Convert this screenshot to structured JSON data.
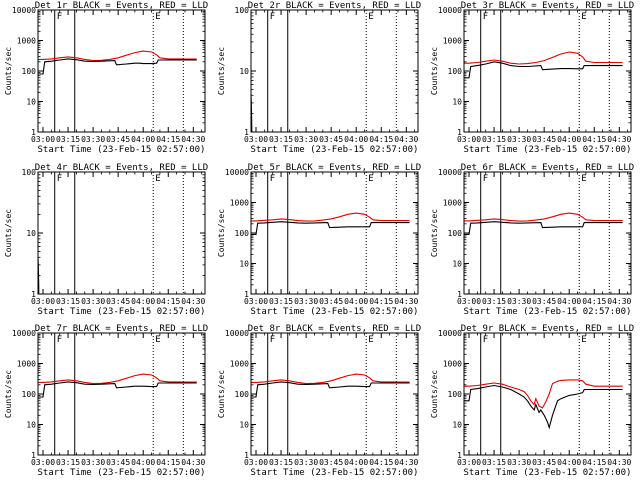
{
  "colors": {
    "events": "#000000",
    "lld": "#e00000",
    "axes": "#000000",
    "background": "#ffffff"
  },
  "x_ticks": [
    "03:00",
    "03:15",
    "03:30",
    "03:45",
    "04:00",
    "04:15",
    "04:30"
  ],
  "xlabel": "Start Time (23-Feb-15 02:57:00)",
  "ylabel": "Counts/sec",
  "chart_data": [
    {
      "type": "line",
      "title": "Det 1r BLACK = Events, RED = LLD",
      "ylim": [
        1,
        10000
      ],
      "yscale": "log",
      "y_ticks": [
        "1",
        "10",
        "100",
        "1000",
        "10000"
      ],
      "markers": {
        "solid_at": [
          "03:07",
          "03:19"
        ],
        "dotted_at": [
          "04:06",
          "04:24"
        ],
        "letters": [
          "F",
          "E"
        ]
      },
      "series": [
        {
          "name": "BLACK",
          "x": [
            "02:57",
            "03:00",
            "03:01",
            "03:05",
            "03:10",
            "03:15",
            "03:20",
            "03:25",
            "03:30",
            "03:35",
            "03:43",
            "03:44",
            "03:50",
            "03:55",
            "03:58",
            "04:00",
            "04:05",
            "04:08",
            "04:09",
            "04:15",
            "04:20",
            "04:25",
            "04:28",
            "04:32"
          ],
          "values": [
            80,
            80,
            200,
            210,
            230,
            250,
            235,
            210,
            205,
            210,
            220,
            160,
            170,
            180,
            180,
            175,
            175,
            180,
            230,
            230,
            230,
            230,
            230,
            230
          ]
        },
        {
          "name": "RED",
          "x": [
            "02:57",
            "03:00",
            "03:05",
            "03:10",
            "03:15",
            "03:20",
            "03:25",
            "03:30",
            "03:35",
            "03:40",
            "03:45",
            "03:50",
            "03:55",
            "04:00",
            "04:05",
            "04:08",
            "04:10",
            "04:15",
            "04:20",
            "04:25",
            "04:28",
            "04:32"
          ],
          "values": [
            240,
            240,
            250,
            270,
            290,
            270,
            240,
            220,
            225,
            240,
            270,
            330,
            400,
            450,
            420,
            340,
            270,
            250,
            250,
            245,
            245,
            245
          ]
        }
      ]
    },
    {
      "type": "line",
      "title": "Det 2r BLACK = Events, RED = LLD",
      "ylim": [
        1,
        100
      ],
      "yscale": "log",
      "y_ticks": [
        "1",
        "10",
        "100"
      ],
      "markers": {
        "solid_at": [
          "03:07",
          "03:19"
        ],
        "dotted_at": [
          "04:06",
          "04:24"
        ],
        "letters": [
          "F",
          "E"
        ]
      },
      "series": [
        {
          "name": "BLACK",
          "x": [
            "02:57",
            "02:57.2",
            "02:57.4",
            "02:57.5"
          ],
          "values": [
            4,
            3,
            1.5,
            1
          ]
        }
      ]
    },
    {
      "type": "line",
      "title": "Det 3r BLACK = Events, RED = LLD",
      "ylim": [
        1,
        10000
      ],
      "yscale": "log",
      "y_ticks": [
        "1",
        "10",
        "100",
        "1000",
        "10000"
      ],
      "markers": {
        "solid_at": [
          "03:07",
          "03:19"
        ],
        "dotted_at": [
          "04:06",
          "04:24"
        ],
        "letters": [
          "F",
          "E"
        ]
      },
      "series": [
        {
          "name": "BLACK",
          "x": [
            "02:57",
            "03:00",
            "03:01",
            "03:05",
            "03:10",
            "03:15",
            "03:20",
            "03:25",
            "03:30",
            "03:35",
            "03:43",
            "03:44",
            "03:50",
            "03:55",
            "04:00",
            "04:05",
            "04:08",
            "04:09",
            "04:15",
            "04:20",
            "04:25",
            "04:32"
          ],
          "values": [
            60,
            60,
            140,
            150,
            170,
            200,
            180,
            150,
            140,
            140,
            150,
            110,
            115,
            120,
            120,
            118,
            118,
            150,
            150,
            150,
            150,
            150
          ]
        },
        {
          "name": "RED",
          "x": [
            "02:57",
            "03:00",
            "03:05",
            "03:10",
            "03:15",
            "03:20",
            "03:25",
            "03:30",
            "03:35",
            "03:40",
            "03:45",
            "03:50",
            "03:55",
            "04:00",
            "04:05",
            "04:08",
            "04:10",
            "04:15",
            "04:20",
            "04:25",
            "04:32"
          ],
          "values": [
            180,
            180,
            190,
            210,
            230,
            210,
            180,
            170,
            175,
            190,
            220,
            280,
            360,
            420,
            380,
            290,
            210,
            190,
            190,
            190,
            190
          ]
        }
      ]
    },
    {
      "type": "line",
      "title": "Det 4r BLACK = Events, RED = LLD",
      "ylim": [
        1,
        100
      ],
      "yscale": "log",
      "y_ticks": [
        "1",
        "10",
        "100"
      ],
      "markers": {
        "solid_at": [
          "03:07",
          "03:19"
        ],
        "dotted_at": [
          "04:06",
          "04:24"
        ],
        "letters": [
          "F",
          "E"
        ]
      },
      "series": [
        {
          "name": "BLACK",
          "x": [
            "02:57",
            "02:57.2",
            "02:57.4",
            "02:57.5"
          ],
          "values": [
            4,
            3,
            1.5,
            1
          ]
        }
      ]
    },
    {
      "type": "line",
      "title": "Det 5r BLACK = Events, RED = LLD",
      "ylim": [
        1,
        10000
      ],
      "yscale": "log",
      "y_ticks": [
        "1",
        "10",
        "100",
        "1000",
        "10000"
      ],
      "markers": {
        "solid_at": [
          "03:07",
          "03:19"
        ],
        "dotted_at": [
          "04:06",
          "04:24"
        ],
        "letters": [
          "F",
          "E"
        ]
      },
      "series": [
        {
          "name": "BLACK",
          "x": [
            "02:57",
            "03:00",
            "03:01",
            "03:05",
            "03:10",
            "03:15",
            "03:20",
            "03:25",
            "03:30",
            "03:35",
            "03:43",
            "03:44",
            "03:50",
            "03:55",
            "04:00",
            "04:05",
            "04:08",
            "04:09",
            "04:15",
            "04:20",
            "04:25",
            "04:32"
          ],
          "values": [
            90,
            90,
            210,
            215,
            225,
            235,
            225,
            215,
            210,
            215,
            220,
            150,
            155,
            160,
            160,
            160,
            160,
            220,
            220,
            220,
            220,
            220
          ]
        },
        {
          "name": "RED",
          "x": [
            "02:57",
            "03:00",
            "03:05",
            "03:10",
            "03:15",
            "03:20",
            "03:25",
            "03:30",
            "03:35",
            "03:40",
            "03:45",
            "03:50",
            "03:55",
            "04:00",
            "04:05",
            "04:08",
            "04:10",
            "04:15",
            "04:20",
            "04:25",
            "04:32"
          ],
          "values": [
            250,
            250,
            260,
            270,
            290,
            275,
            255,
            245,
            250,
            265,
            290,
            340,
            410,
            450,
            410,
            330,
            270,
            255,
            255,
            255,
            255
          ]
        }
      ]
    },
    {
      "type": "line",
      "title": "Det 6r BLACK = Events, RED = LLD",
      "ylim": [
        1,
        10000
      ],
      "yscale": "log",
      "y_ticks": [
        "1",
        "10",
        "100",
        "1000",
        "10000"
      ],
      "markers": {
        "solid_at": [
          "03:07",
          "03:19"
        ],
        "dotted_at": [
          "04:06",
          "04:24"
        ],
        "letters": [
          "F",
          "E"
        ]
      },
      "series": [
        {
          "name": "BLACK",
          "x": [
            "02:57",
            "03:00",
            "03:01",
            "03:05",
            "03:10",
            "03:15",
            "03:20",
            "03:25",
            "03:30",
            "03:35",
            "03:43",
            "03:44",
            "03:50",
            "03:55",
            "04:00",
            "04:05",
            "04:08",
            "04:09",
            "04:15",
            "04:20",
            "04:25",
            "04:32"
          ],
          "values": [
            90,
            90,
            210,
            215,
            225,
            235,
            225,
            215,
            210,
            215,
            220,
            150,
            155,
            160,
            160,
            160,
            160,
            220,
            220,
            220,
            220,
            220
          ]
        },
        {
          "name": "RED",
          "x": [
            "02:57",
            "03:00",
            "03:05",
            "03:10",
            "03:15",
            "03:20",
            "03:25",
            "03:30",
            "03:35",
            "03:40",
            "03:45",
            "03:50",
            "03:55",
            "04:00",
            "04:05",
            "04:08",
            "04:10",
            "04:15",
            "04:20",
            "04:25",
            "04:32"
          ],
          "values": [
            250,
            250,
            260,
            270,
            290,
            275,
            255,
            245,
            250,
            265,
            290,
            340,
            410,
            450,
            410,
            330,
            270,
            255,
            255,
            255,
            255
          ]
        }
      ]
    },
    {
      "type": "line",
      "title": "Det 7r BLACK = Events, RED = LLD",
      "ylim": [
        1,
        10000
      ],
      "yscale": "log",
      "y_ticks": [
        "1",
        "10",
        "100",
        "1000",
        "10000"
      ],
      "markers": {
        "solid_at": [
          "03:07",
          "03:19"
        ],
        "dotted_at": [
          "04:06",
          "04:24"
        ],
        "letters": [
          "F",
          "E"
        ]
      },
      "series": [
        {
          "name": "BLACK",
          "x": [
            "02:57",
            "03:00",
            "03:01",
            "03:05",
            "03:10",
            "03:15",
            "03:20",
            "03:25",
            "03:30",
            "03:35",
            "03:43",
            "03:44",
            "03:50",
            "03:55",
            "04:00",
            "04:05",
            "04:08",
            "04:09",
            "04:15",
            "04:20",
            "04:25",
            "04:32"
          ],
          "values": [
            80,
            80,
            200,
            210,
            230,
            250,
            235,
            210,
            205,
            210,
            220,
            160,
            170,
            180,
            180,
            175,
            175,
            230,
            230,
            230,
            230,
            230
          ]
        },
        {
          "name": "RED",
          "x": [
            "02:57",
            "03:00",
            "03:05",
            "03:10",
            "03:15",
            "03:20",
            "03:25",
            "03:30",
            "03:35",
            "03:40",
            "03:45",
            "03:50",
            "03:55",
            "04:00",
            "04:05",
            "04:08",
            "04:10",
            "04:15",
            "04:20",
            "04:25",
            "04:32"
          ],
          "values": [
            240,
            240,
            250,
            270,
            290,
            270,
            240,
            220,
            225,
            240,
            270,
            330,
            400,
            450,
            420,
            340,
            270,
            250,
            250,
            245,
            245
          ]
        }
      ]
    },
    {
      "type": "line",
      "title": "Det 8r BLACK = Events, RED = LLD",
      "ylim": [
        1,
        10000
      ],
      "yscale": "log",
      "y_ticks": [
        "1",
        "10",
        "100",
        "1000",
        "10000"
      ],
      "markers": {
        "solid_at": [
          "03:07",
          "03:19"
        ],
        "dotted_at": [
          "04:06",
          "04:24"
        ],
        "letters": [
          "F",
          "E"
        ]
      },
      "series": [
        {
          "name": "BLACK",
          "x": [
            "02:57",
            "03:00",
            "03:01",
            "03:05",
            "03:10",
            "03:15",
            "03:20",
            "03:25",
            "03:30",
            "03:35",
            "03:43",
            "03:44",
            "03:50",
            "03:55",
            "04:00",
            "04:05",
            "04:08",
            "04:09",
            "04:15",
            "04:20",
            "04:25",
            "04:32"
          ],
          "values": [
            80,
            80,
            200,
            210,
            230,
            250,
            235,
            210,
            205,
            210,
            220,
            160,
            170,
            180,
            180,
            175,
            175,
            230,
            230,
            230,
            230,
            230
          ]
        },
        {
          "name": "RED",
          "x": [
            "02:57",
            "03:00",
            "03:05",
            "03:10",
            "03:15",
            "03:20",
            "03:25",
            "03:30",
            "03:35",
            "03:40",
            "03:45",
            "03:50",
            "03:55",
            "04:00",
            "04:05",
            "04:08",
            "04:10",
            "04:15",
            "04:20",
            "04:25",
            "04:32"
          ],
          "values": [
            240,
            240,
            250,
            270,
            290,
            270,
            240,
            220,
            225,
            240,
            270,
            330,
            400,
            450,
            420,
            340,
            270,
            250,
            250,
            245,
            245
          ]
        }
      ]
    },
    {
      "type": "line",
      "title": "Det 9r BLACK = Events, RED = LLD",
      "ylim": [
        1,
        10000
      ],
      "yscale": "log",
      "y_ticks": [
        "1",
        "10",
        "100",
        "1000",
        "10000"
      ],
      "markers": {
        "solid_at": [
          "03:07",
          "03:19"
        ],
        "dotted_at": [
          "04:06",
          "04:24"
        ],
        "letters": [
          "F",
          "E"
        ]
      },
      "series": [
        {
          "name": "BLACK",
          "x": [
            "02:57",
            "03:00",
            "03:01",
            "03:05",
            "03:10",
            "03:15",
            "03:20",
            "03:25",
            "03:30",
            "03:33",
            "03:35",
            "03:37",
            "03:39",
            "03:40",
            "03:42",
            "03:43",
            "03:45",
            "03:47",
            "03:48",
            "03:50",
            "03:53",
            "03:55",
            "04:00",
            "04:05",
            "04:08",
            "04:09",
            "04:15",
            "04:20",
            "04:25",
            "04:32"
          ],
          "values": [
            60,
            60,
            140,
            150,
            170,
            190,
            170,
            140,
            100,
            80,
            60,
            40,
            30,
            45,
            25,
            30,
            20,
            12,
            8,
            20,
            60,
            70,
            90,
            100,
            110,
            140,
            140,
            140,
            140,
            140
          ]
        },
        {
          "name": "RED",
          "x": [
            "02:57",
            "03:00",
            "03:05",
            "03:10",
            "03:15",
            "03:20",
            "03:25",
            "03:30",
            "03:33",
            "03:35",
            "03:37",
            "03:39",
            "03:40",
            "03:42",
            "03:44",
            "03:46",
            "03:48",
            "03:50",
            "03:53",
            "03:55",
            "04:00",
            "04:05",
            "04:08",
            "04:10",
            "04:15",
            "04:20",
            "04:25",
            "04:32"
          ],
          "values": [
            180,
            180,
            190,
            210,
            230,
            210,
            170,
            140,
            120,
            90,
            60,
            45,
            70,
            40,
            35,
            55,
            100,
            220,
            260,
            280,
            290,
            290,
            270,
            210,
            180,
            180,
            180,
            180
          ]
        }
      ]
    }
  ]
}
